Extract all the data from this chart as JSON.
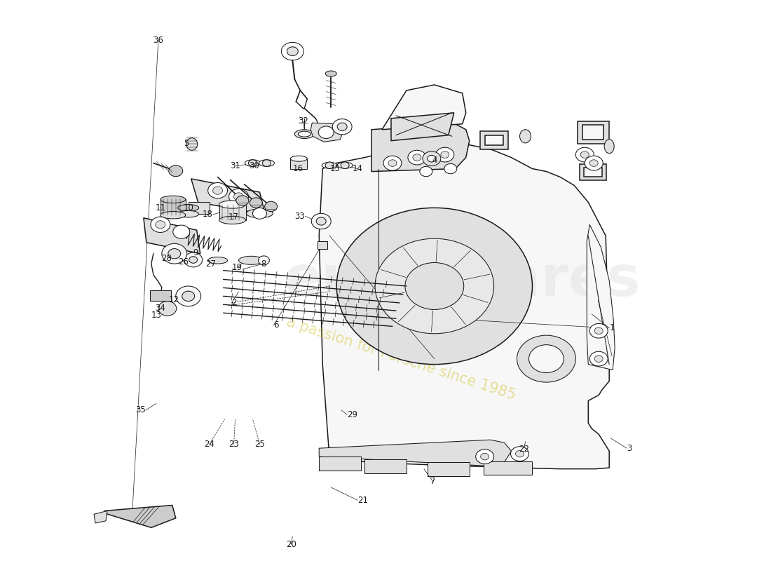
{
  "bg_color": "#ffffff",
  "lc": "#1a1a1a",
  "lw_main": 1.1,
  "lw_med": 0.75,
  "lw_thin": 0.5,
  "fc_body": "#f0f0f0",
  "fc_light": "#f7f7f7",
  "fc_mid": "#e0e0e0",
  "fc_dark": "#cccccc",
  "watermark_gray": "#e4e4e4",
  "watermark_yellow": "#cfc020",
  "label_fontsize": 8.5,
  "labels": {
    "1": [
      0.87,
      0.415,
      "left"
    ],
    "2": [
      0.33,
      0.46,
      "left"
    ],
    "3": [
      0.895,
      0.2,
      "left"
    ],
    "4": [
      0.62,
      0.715,
      "center"
    ],
    "5": [
      0.265,
      0.745,
      "center"
    ],
    "6": [
      0.39,
      0.42,
      "left"
    ],
    "7": [
      0.618,
      0.14,
      "center"
    ],
    "8": [
      0.375,
      0.53,
      "center"
    ],
    "9": [
      0.278,
      0.55,
      "center"
    ],
    "10": [
      0.268,
      0.63,
      "center"
    ],
    "11": [
      0.228,
      0.63,
      "center"
    ],
    "12": [
      0.255,
      0.465,
      "right"
    ],
    "13": [
      0.23,
      0.438,
      "right"
    ],
    "14": [
      0.51,
      0.7,
      "center"
    ],
    "15": [
      0.478,
      0.7,
      "center"
    ],
    "16": [
      0.425,
      0.7,
      "center"
    ],
    "17": [
      0.34,
      0.613,
      "right"
    ],
    "18": [
      0.303,
      0.618,
      "right"
    ],
    "19": [
      0.338,
      0.523,
      "center"
    ],
    "20": [
      0.415,
      0.028,
      "center"
    ],
    "21": [
      0.51,
      0.107,
      "left"
    ],
    "22": [
      0.748,
      0.198,
      "center"
    ],
    "23": [
      0.333,
      0.207,
      "center"
    ],
    "24": [
      0.298,
      0.207,
      "center"
    ],
    "25": [
      0.37,
      0.207,
      "center"
    ],
    "26": [
      0.268,
      0.533,
      "right"
    ],
    "27": [
      0.3,
      0.53,
      "center"
    ],
    "28": [
      0.244,
      0.54,
      "right"
    ],
    "29": [
      0.495,
      0.26,
      "left"
    ],
    "30": [
      0.362,
      0.705,
      "center"
    ],
    "31": [
      0.335,
      0.705,
      "center"
    ],
    "32": [
      0.432,
      0.785,
      "center"
    ],
    "33": [
      0.435,
      0.615,
      "right"
    ],
    "34": [
      0.235,
      0.45,
      "right"
    ],
    "35": [
      0.207,
      0.268,
      "right"
    ],
    "36": [
      0.225,
      0.93,
      "center"
    ]
  }
}
